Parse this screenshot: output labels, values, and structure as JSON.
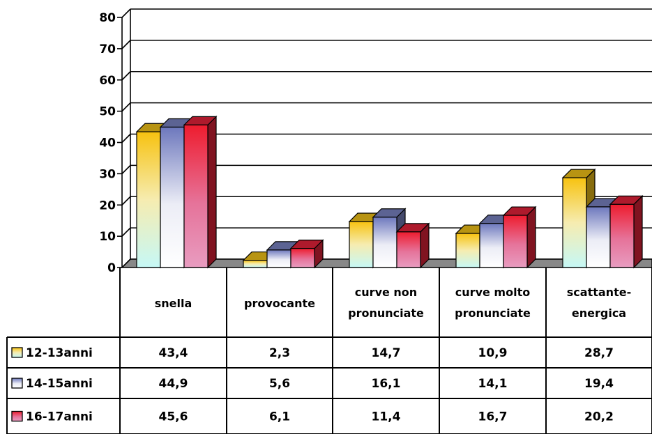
{
  "chart_data": {
    "type": "bar",
    "categories": [
      [
        "snella"
      ],
      [
        "provocante"
      ],
      [
        "curve non",
        "pronunciate"
      ],
      [
        "curve molto",
        "pronunciate"
      ],
      [
        "scattante-",
        "energica"
      ]
    ],
    "series": [
      {
        "name": "12-13anni",
        "values": [
          43.4,
          2.3,
          14.7,
          10.9,
          28.7
        ],
        "labels": [
          "43,4",
          "2,3",
          "14,7",
          "10,9",
          "28,7"
        ],
        "color": "#f5c518"
      },
      {
        "name": "14-15anni",
        "values": [
          44.9,
          5.6,
          16.1,
          14.1,
          19.4
        ],
        "labels": [
          "44,9",
          "5,6",
          "16,1",
          "14,1",
          "19,4"
        ],
        "color": "#7b84c4"
      },
      {
        "name": "16-17anni",
        "values": [
          45.6,
          6.1,
          11.4,
          16.7,
          20.2
        ],
        "labels": [
          "45,6",
          "6,1",
          "11,4",
          "16,7",
          "20,2"
        ],
        "color": "#e8223a"
      }
    ],
    "ylim": [
      0,
      80
    ],
    "yticks": [
      "0",
      "10",
      "20",
      "30",
      "40",
      "50",
      "60",
      "70",
      "80"
    ],
    "grid": true,
    "data_table": true,
    "style": "3d-clustered-column"
  }
}
